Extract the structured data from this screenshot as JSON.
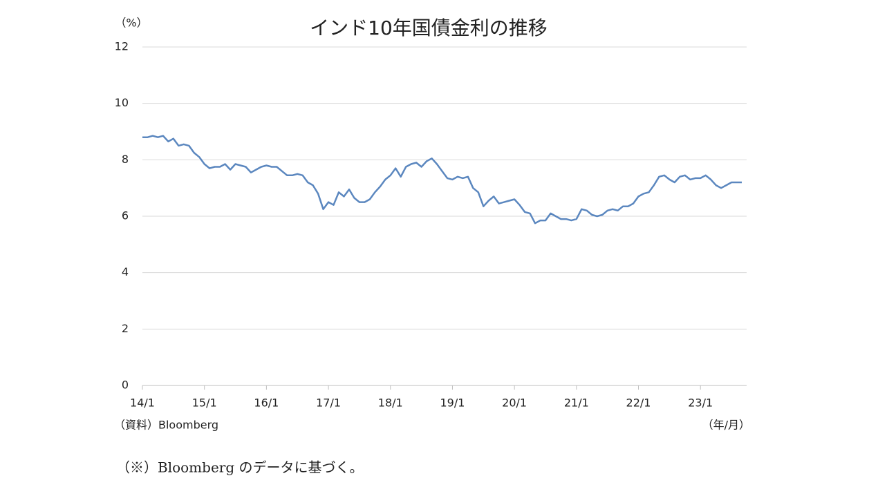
{
  "chart_data": {
    "type": "line",
    "title": "インド10年国債金利の推移",
    "y_unit": "（%）",
    "x_unit": "（年/月）",
    "source": "（資料）Bloomberg",
    "footnote": "（※）Bloomberg のデータに基づく。",
    "categories": [
      "14/1",
      null,
      null,
      null,
      null,
      null,
      null,
      null,
      null,
      null,
      null,
      null,
      "15/1",
      null,
      null,
      null,
      null,
      null,
      null,
      null,
      null,
      null,
      null,
      null,
      "16/1",
      null,
      null,
      null,
      null,
      null,
      null,
      null,
      null,
      null,
      null,
      null,
      "17/1",
      null,
      null,
      null,
      null,
      null,
      null,
      null,
      null,
      null,
      null,
      null,
      "18/1",
      null,
      null,
      null,
      null,
      null,
      null,
      null,
      null,
      null,
      null,
      null,
      "19/1",
      null,
      null,
      null,
      null,
      null,
      null,
      null,
      null,
      null,
      null,
      null,
      "20/1",
      null,
      null,
      null,
      null,
      null,
      null,
      null,
      null,
      null,
      null,
      null,
      "21/1",
      null,
      null,
      null,
      null,
      null,
      null,
      null,
      null,
      null,
      null,
      null,
      "22/1",
      null,
      null,
      null,
      null,
      null,
      null,
      null,
      null,
      null,
      null,
      null,
      "23/1",
      null,
      null,
      null,
      null,
      null,
      null,
      null,
      null
    ],
    "series": [
      {
        "color": "#5b87bf",
        "values": [
          8.8,
          8.8,
          8.85,
          8.8,
          8.85,
          8.65,
          8.75,
          8.5,
          8.55,
          8.5,
          8.25,
          8.1,
          7.85,
          7.7,
          7.75,
          7.75,
          7.85,
          7.65,
          7.85,
          7.8,
          7.75,
          7.55,
          7.65,
          7.75,
          7.8,
          7.75,
          7.75,
          7.6,
          7.45,
          7.45,
          7.5,
          7.45,
          7.2,
          7.1,
          6.8,
          6.25,
          6.5,
          6.4,
          6.85,
          6.7,
          6.95,
          6.65,
          6.5,
          6.5,
          6.6,
          6.85,
          7.05,
          7.3,
          7.45,
          7.7,
          7.4,
          7.75,
          7.85,
          7.9,
          7.75,
          7.95,
          8.05,
          7.85,
          7.6,
          7.35,
          7.3,
          7.4,
          7.35,
          7.4,
          7.0,
          6.85,
          6.35,
          6.55,
          6.7,
          6.45,
          6.5,
          6.55,
          6.6,
          6.4,
          6.15,
          6.1,
          5.75,
          5.85,
          5.85,
          6.1,
          6.0,
          5.9,
          5.9,
          5.85,
          5.9,
          6.25,
          6.2,
          6.05,
          6.0,
          6.05,
          6.2,
          6.25,
          6.2,
          6.35,
          6.35,
          6.45,
          6.7,
          6.8,
          6.85,
          7.1,
          7.4,
          7.45,
          7.3,
          7.2,
          7.4,
          7.45,
          7.3,
          7.35,
          7.35,
          7.45,
          7.3,
          7.1,
          7.0,
          7.1,
          7.2,
          7.2,
          7.2
        ]
      }
    ],
    "ylim": [
      0,
      12
    ],
    "yticks": [
      0,
      2,
      4,
      6,
      8,
      10,
      12
    ],
    "grid": true
  }
}
